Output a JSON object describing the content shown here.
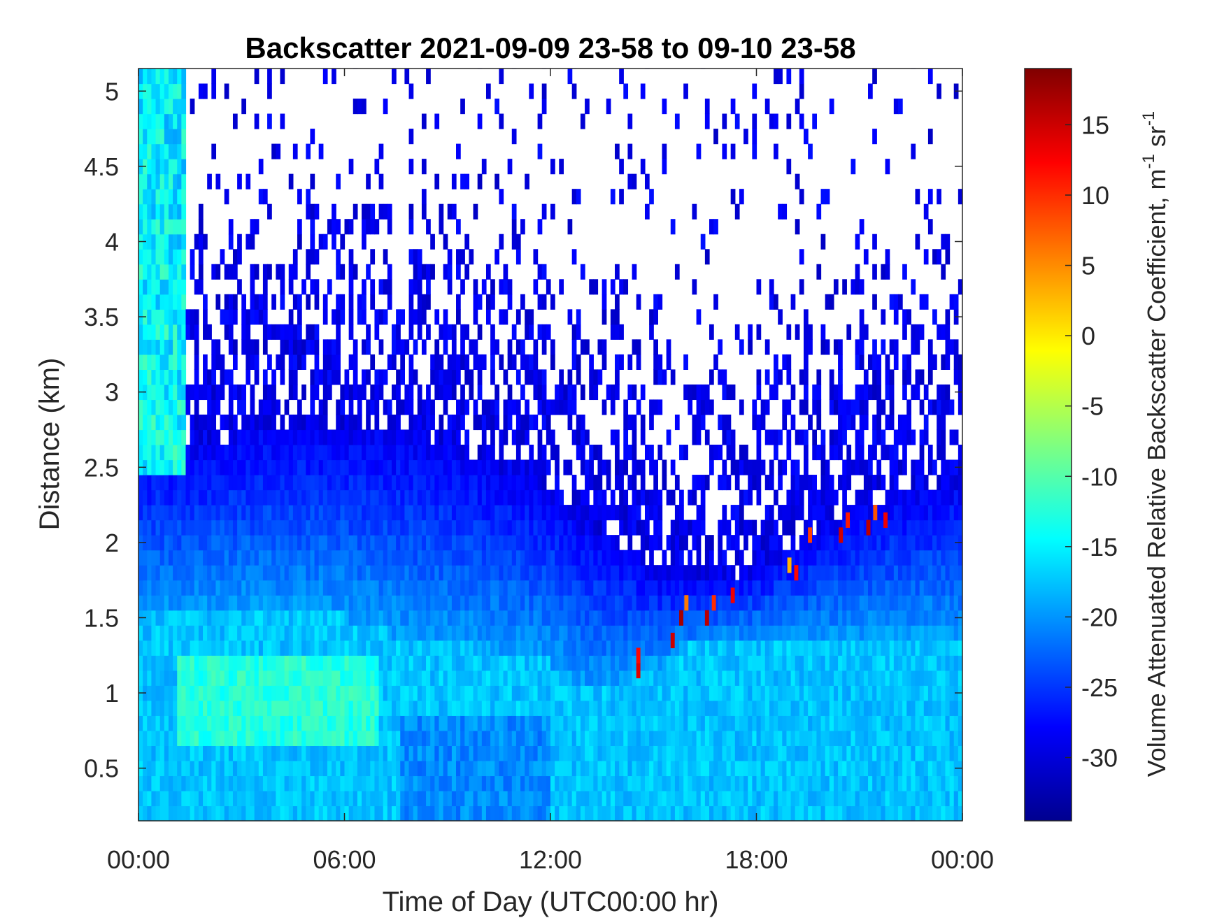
{
  "chart_data": {
    "type": "heatmap",
    "title": "Backscatter 2021-09-09 23-58 to 09-10 23-58",
    "xlabel": "Time of Day (UTC00:00 hr)",
    "ylabel": "Distance (km)",
    "x_ticks": [
      "00:00",
      "06:00",
      "12:00",
      "18:00",
      "00:00"
    ],
    "x_tick_hours": [
      0,
      6,
      12,
      18,
      24
    ],
    "xlim_hours": [
      0,
      24
    ],
    "y_ticks": [
      "0.5",
      "1",
      "1.5",
      "2",
      "2.5",
      "3",
      "3.5",
      "4",
      "4.5",
      "5"
    ],
    "y_tick_values": [
      0.5,
      1,
      1.5,
      2,
      2.5,
      3,
      3.5,
      4,
      4.5,
      5
    ],
    "ylim_km": [
      0.15,
      5.15
    ],
    "colorbar": {
      "label_main": "Volume Attenuated Relative Backscatter Coefficient, m",
      "label_exp1": "-1",
      "label_mid": " sr",
      "label_exp2": "-1",
      "ticks": [
        "15",
        "10",
        "5",
        "0",
        "-5",
        "-10",
        "-15",
        "-20",
        "-25",
        "-30"
      ],
      "tick_values": [
        15,
        10,
        5,
        0,
        -5,
        -10,
        -15,
        -20,
        -25,
        -30
      ],
      "clim": [
        -34.5,
        19
      ],
      "colormap": "jet"
    },
    "features": {
      "boundary_layer_top_km": [
        [
          0,
          2.6
        ],
        [
          2,
          2.65
        ],
        [
          4,
          2.8
        ],
        [
          6,
          2.75
        ],
        [
          8,
          2.7
        ],
        [
          10,
          2.55
        ],
        [
          12,
          2.35
        ],
        [
          13,
          2.1
        ],
        [
          14,
          2.0
        ],
        [
          15,
          1.8
        ],
        [
          16,
          1.75
        ],
        [
          18,
          1.8
        ],
        [
          20,
          2.1
        ],
        [
          22,
          2.3
        ],
        [
          24,
          2.4
        ]
      ],
      "aerosol_layer_top_km": [
        [
          0,
          1.5
        ],
        [
          3,
          1.55
        ],
        [
          6,
          1.5
        ],
        [
          8,
          1.35
        ],
        [
          10,
          1.3
        ],
        [
          12,
          1.2
        ],
        [
          13,
          1.05
        ],
        [
          14,
          1.05
        ],
        [
          16,
          1.3
        ],
        [
          18,
          1.35
        ],
        [
          20,
          1.35
        ],
        [
          24,
          1.4
        ]
      ],
      "cloud_cells": [
        {
          "hour": 14.5,
          "km": 1.1,
          "value": 14
        },
        {
          "hour": 14.5,
          "km": 1.2,
          "value": 12
        },
        {
          "hour": 15.5,
          "km": 1.3,
          "value": 15
        },
        {
          "hour": 15.75,
          "km": 1.45,
          "value": 17
        },
        {
          "hour": 15.9,
          "km": 1.55,
          "value": 6
        },
        {
          "hour": 16.5,
          "km": 1.45,
          "value": 16
        },
        {
          "hour": 16.7,
          "km": 1.55,
          "value": 10
        },
        {
          "hour": 17.25,
          "km": 1.6,
          "value": 13
        },
        {
          "hour": 18.9,
          "km": 1.8,
          "value": 3
        },
        {
          "hour": 19.1,
          "km": 1.75,
          "value": 12
        },
        {
          "hour": 19.5,
          "km": 2.0,
          "value": 9
        },
        {
          "hour": 20.4,
          "km": 2.0,
          "value": 15
        },
        {
          "hour": 20.6,
          "km": 2.1,
          "value": 11
        },
        {
          "hour": 21.2,
          "km": 2.05,
          "value": 16
        },
        {
          "hour": 21.4,
          "km": 2.15,
          "value": 8
        },
        {
          "hour": 21.7,
          "km": 2.1,
          "value": 13
        }
      ]
    }
  }
}
